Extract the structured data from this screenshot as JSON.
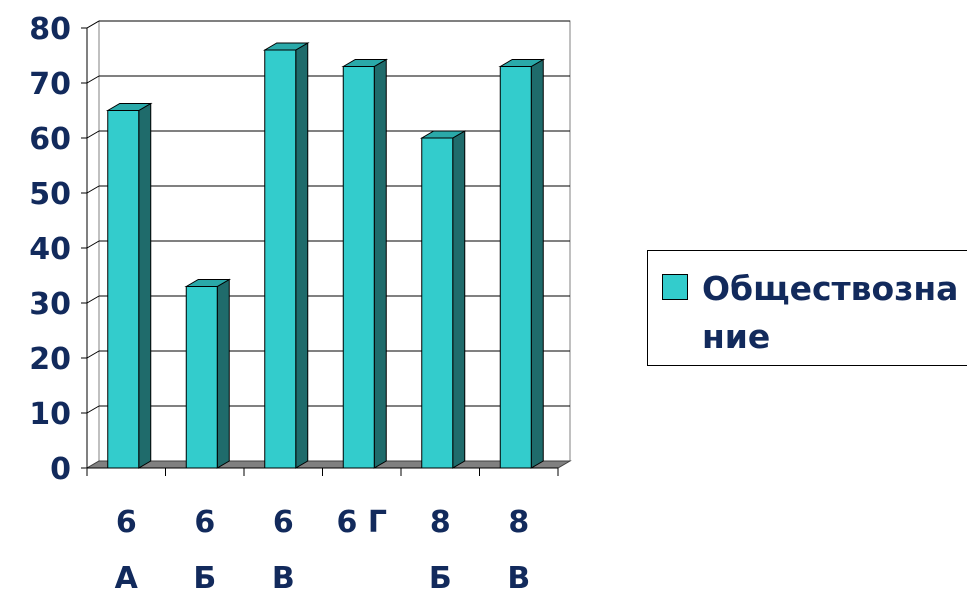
{
  "chart_data": {
    "type": "bar",
    "categories": [
      "6 А",
      "6 Б",
      "6 В",
      "6 Г",
      "8 Б",
      "8 В"
    ],
    "category_lines": [
      [
        "6",
        "А"
      ],
      [
        "6",
        "Б"
      ],
      [
        "6",
        "В"
      ],
      [
        "6 Г",
        ""
      ],
      [
        "8",
        "Б"
      ],
      [
        "8",
        "В"
      ]
    ],
    "series": [
      {
        "name": "Обществознание",
        "values": [
          65,
          33,
          76,
          73,
          60,
          73
        ]
      }
    ],
    "ylim": [
      0,
      80
    ],
    "yticks": [
      0,
      10,
      20,
      30,
      40,
      50,
      60,
      70,
      80
    ],
    "grid": true,
    "legend_position": "right",
    "bar_style": "3d-column",
    "colors": {
      "bar_front": "#33cccc",
      "bar_side": "#1f6b6b",
      "bar_top": "#2aa9a9",
      "text": "#122a5c",
      "floor": "#808080"
    }
  },
  "legend": {
    "label": "Обществознание"
  }
}
